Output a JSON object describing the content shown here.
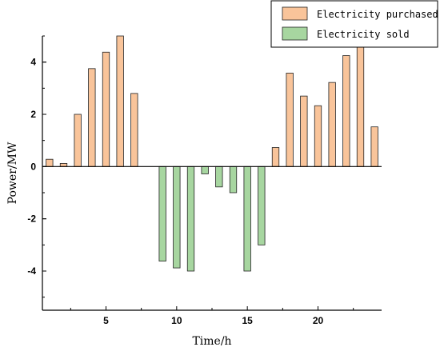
{
  "chart_data": {
    "type": "bar",
    "xlabel": "Time/h",
    "ylabel": "Power/MW",
    "xlim": [
      0.5,
      24.5
    ],
    "ylim": [
      -5.5,
      5
    ],
    "xticks": [
      5,
      10,
      15,
      20
    ],
    "yticks": [
      -4,
      -2,
      0,
      2,
      4
    ],
    "legend_position": "top-right",
    "grid": false,
    "series": [
      {
        "name": "Electricity purchased",
        "color": "#f9c49a",
        "x": [
          1,
          2,
          3,
          4,
          5,
          6,
          7,
          17,
          18,
          19,
          20,
          21,
          22,
          23,
          24
        ],
        "values": [
          0.28,
          0.12,
          2.0,
          3.75,
          4.38,
          5.0,
          2.8,
          0.73,
          3.58,
          2.7,
          2.33,
          3.22,
          4.25,
          4.6,
          1.52
        ]
      },
      {
        "name": "Electricity sold",
        "color": "#a7d6a0",
        "x": [
          9,
          10,
          11,
          12,
          13,
          14,
          15,
          16
        ],
        "values": [
          -3.62,
          -3.88,
          -4.0,
          -0.28,
          -0.78,
          -1.0,
          -4.0,
          -3.0
        ]
      }
    ]
  }
}
